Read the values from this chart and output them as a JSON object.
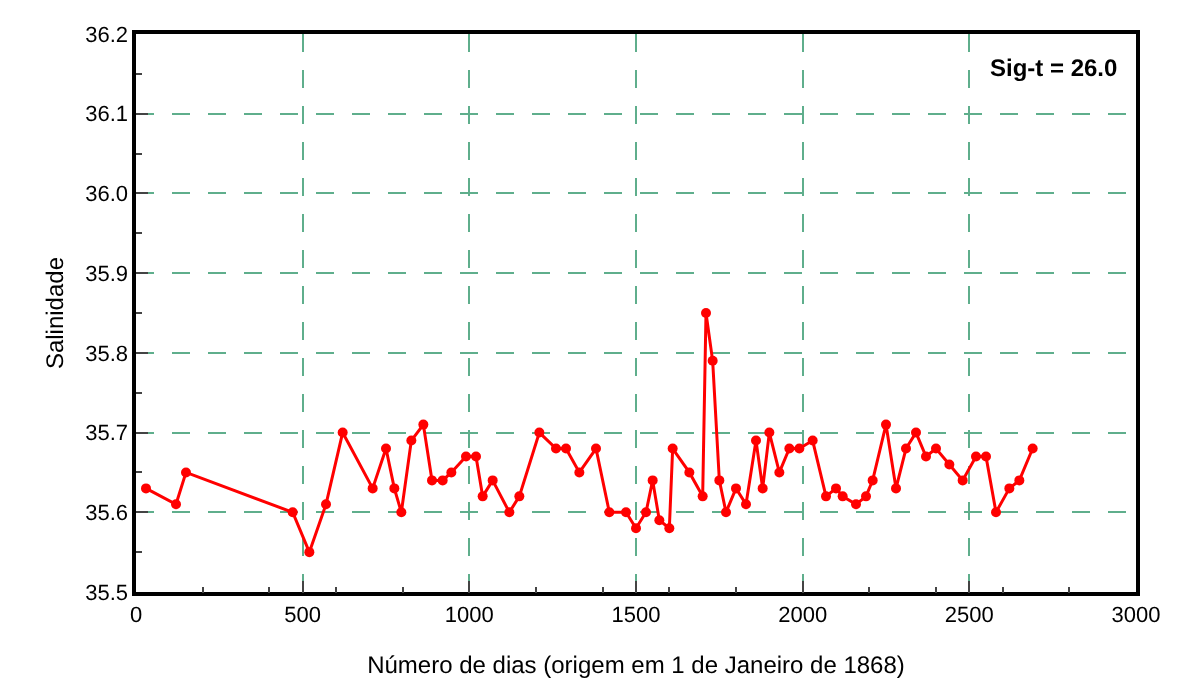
{
  "chart_data": {
    "type": "line",
    "xlabel": "Número de dias (origem em 1 de Janeiro de 1868)",
    "ylabel": "Salinidade",
    "annotations": [
      "Sig-t = 26.0"
    ],
    "x": [
      30,
      120,
      150,
      470,
      520,
      570,
      620,
      710,
      750,
      775,
      796,
      826,
      862,
      888,
      920,
      946,
      990,
      1020,
      1040,
      1070,
      1120,
      1150,
      1210,
      1260,
      1290,
      1330,
      1380,
      1420,
      1470,
      1500,
      1530,
      1550,
      1570,
      1600,
      1610,
      1660,
      1700,
      1710,
      1730,
      1750,
      1770,
      1800,
      1830,
      1860,
      1880,
      1900,
      1930,
      1960,
      1990,
      2030,
      2070,
      2100,
      2120,
      2160,
      2190,
      2210,
      2250,
      2280,
      2310,
      2340,
      2370,
      2400,
      2440,
      2480,
      2520,
      2550,
      2580,
      2620,
      2650,
      2690
    ],
    "series": [
      {
        "color": "#ff0000",
        "values": [
          35.63,
          35.61,
          35.65,
          35.6,
          35.55,
          35.61,
          35.7,
          35.63,
          35.68,
          35.63,
          35.6,
          35.69,
          35.71,
          35.64,
          35.64,
          35.65,
          35.67,
          35.67,
          35.62,
          35.64,
          35.6,
          35.62,
          35.7,
          35.68,
          35.68,
          35.65,
          35.68,
          35.6,
          35.6,
          35.58,
          35.6,
          35.64,
          35.59,
          35.58,
          35.68,
          35.65,
          35.62,
          35.85,
          35.79,
          35.64,
          35.6,
          35.63,
          35.61,
          35.69,
          35.63,
          35.7,
          35.65,
          35.68,
          35.68,
          35.69,
          35.62,
          35.63,
          35.62,
          35.61,
          35.62,
          35.64,
          35.71,
          35.63,
          35.68,
          35.7,
          35.67,
          35.68,
          35.66,
          35.64,
          35.67,
          35.67,
          35.6,
          35.63,
          35.64,
          35.68
        ]
      }
    ],
    "xlim": [
      0,
      3000
    ],
    "xticks": [
      0,
      500,
      1000,
      1500,
      2000,
      2500,
      3000
    ],
    "ylim": [
      35.5,
      36.2
    ],
    "yticks": [
      {
        "value": 35.5,
        "label": "35.5"
      },
      {
        "value": 35.6,
        "label": "35.6"
      },
      {
        "value": 35.7,
        "label": "35.7"
      },
      {
        "value": 35.8,
        "label": "35.8"
      },
      {
        "value": 35.9,
        "label": "35.9"
      },
      {
        "value": 36.0,
        "label": "36.0"
      },
      {
        "value": 36.1,
        "label": "36.1"
      },
      {
        "value": 36.2,
        "label": "36.2"
      }
    ],
    "grid": true,
    "marker": "circle",
    "line_style": "solid",
    "legend": false
  }
}
